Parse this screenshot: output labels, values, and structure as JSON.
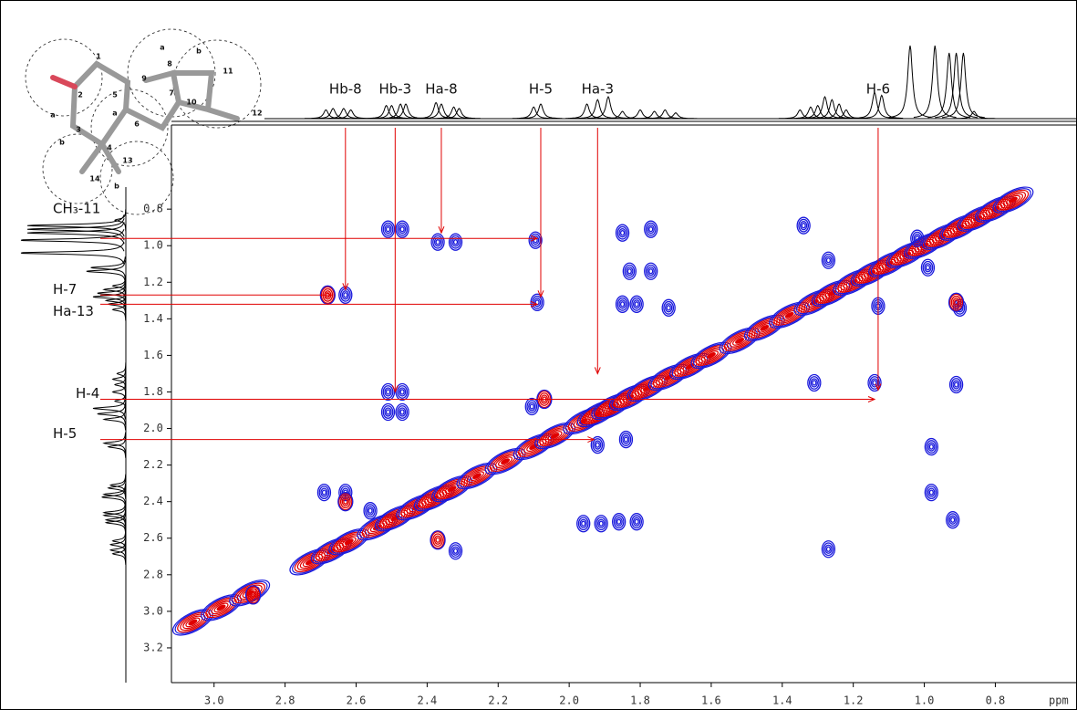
{
  "chart_data": {
    "type": "nmr2d",
    "x_label": "ppm",
    "xlim": [
      3.12,
      0.57
    ],
    "ylim": [
      0.33,
      3.39
    ],
    "xticks": [
      {
        "value": 3,
        "label": "3.0"
      },
      2.8,
      2.6,
      2.4,
      2.2,
      {
        "value": 2,
        "label": "2.0"
      },
      1.8,
      1.6,
      1.4,
      1.2,
      {
        "value": 1,
        "label": "1.0"
      },
      0.8
    ],
    "yticks": [
      0.8,
      {
        "value": 1,
        "label": "1.0"
      },
      1.2,
      1.4,
      1.6,
      1.8,
      {
        "value": 2,
        "label": "2.0"
      },
      2.2,
      2.4,
      2.6,
      2.8,
      {
        "value": 3,
        "label": "3.0"
      },
      3.2
    ],
    "series": [
      {
        "color": "#1a1adc",
        "x": [
          2.51,
          2.47,
          2.37,
          2.32,
          2.095,
          2.63,
          2.09,
          2.51,
          2.47,
          2.51,
          2.47,
          2.105,
          1.85,
          1.77,
          1.83,
          1.77,
          1.85,
          1.81,
          1.72,
          1.34,
          1.27,
          1.31,
          1.14,
          0.98,
          0.98,
          0.92,
          0.9,
          0.91,
          2.69,
          2.63,
          2.32,
          1.96,
          1.91,
          1.86,
          1.81,
          1.92,
          1.84,
          2.56,
          1.27,
          1.02,
          0.99,
          1.13
        ],
        "y": [
          0.91,
          0.91,
          0.98,
          0.98,
          0.97,
          1.27,
          1.31,
          1.8,
          1.8,
          1.91,
          1.91,
          1.88,
          0.93,
          0.91,
          1.14,
          1.14,
          1.32,
          1.32,
          1.34,
          0.89,
          1.08,
          1.75,
          1.75,
          2.1,
          2.35,
          2.5,
          1.34,
          1.76,
          2.35,
          2.35,
          2.67,
          2.52,
          2.52,
          2.51,
          2.51,
          2.09,
          2.06,
          2.45,
          2.66,
          0.96,
          1.12,
          1.33
        ]
      },
      {
        "color": "#e00000",
        "x": [
          2.07,
          2.63,
          2.37,
          2.89,
          2.68,
          0.91
        ],
        "y": [
          1.84,
          2.4,
          2.61,
          2.91,
          1.27,
          1.31
        ]
      }
    ],
    "diagonal": [
      3.06,
      2.98,
      2.9,
      2.73,
      2.67,
      2.62,
      2.54,
      2.49,
      2.43,
      2.38,
      2.33,
      2.26,
      2.18,
      2.1,
      2.04,
      1.96,
      1.92,
      1.88,
      1.83,
      1.78,
      1.72,
      1.66,
      1.6,
      1.52,
      1.45,
      1.38,
      1.31,
      1.26,
      1.2,
      1.15,
      1.1,
      1.05,
      1.0,
      0.95,
      0.9,
      0.85,
      0.8,
      0.75
    ],
    "spectrum": {
      "ppm": [
        2.685,
        2.665,
        2.635,
        2.615,
        2.515,
        2.5,
        2.475,
        2.46,
        2.375,
        2.36,
        2.325,
        2.31,
        2.1,
        2.08,
        1.95,
        1.92,
        1.89,
        1.85,
        1.8,
        1.76,
        1.73,
        1.7,
        1.35,
        1.32,
        1.3,
        1.28,
        1.26,
        1.24,
        1.22,
        1.14,
        1.12,
        1.04,
        0.97,
        0.93,
        0.91,
        0.89,
        0.86
      ],
      "height": [
        0.12,
        0.14,
        0.14,
        0.12,
        0.18,
        0.18,
        0.2,
        0.2,
        0.22,
        0.2,
        0.16,
        0.14,
        0.16,
        0.2,
        0.2,
        0.26,
        0.3,
        0.1,
        0.12,
        0.1,
        0.12,
        0.08,
        0.12,
        0.16,
        0.18,
        0.3,
        0.26,
        0.2,
        0.12,
        0.36,
        0.32,
        1.0,
        1.0,
        0.9,
        0.9,
        0.9,
        0.1
      ]
    },
    "top_labels": [
      {
        "text": "Hb-8",
        "x": 2.63,
        "y_end": 1.24
      },
      {
        "text": "Hb-3",
        "x": 2.49,
        "y_end": 1.8
      },
      {
        "text": "Ha-8",
        "x": 2.36,
        "y_end": 0.93
      },
      {
        "text": "H-5",
        "x": 2.08,
        "y_end": 1.28
      },
      {
        "text": "Ha-3",
        "x": 1.92,
        "y_end": 1.7
      },
      {
        "text": "H-6",
        "x": 1.13,
        "y_end": 1.79
      }
    ],
    "side_labels": [
      {
        "text": "CH₃-11",
        "y": 0.96,
        "x_end": 2.09
      },
      {
        "text": "H-7",
        "y": 1.27,
        "x_end": 2.67
      },
      {
        "text": "Ha-13",
        "y": 1.32,
        "x_end": 2.09
      },
      {
        "text": "H-4",
        "y": 1.84,
        "x_end": 1.14
      },
      {
        "text": "H-5",
        "y": 2.06,
        "x_end": 1.93
      }
    ],
    "structure_labels": [
      "1",
      "2",
      "3",
      "4",
      "5",
      "6",
      "7",
      "8",
      "9",
      "10",
      "11",
      "12",
      "13",
      "14",
      "a",
      "b",
      "a",
      "b",
      "a",
      "b"
    ]
  }
}
